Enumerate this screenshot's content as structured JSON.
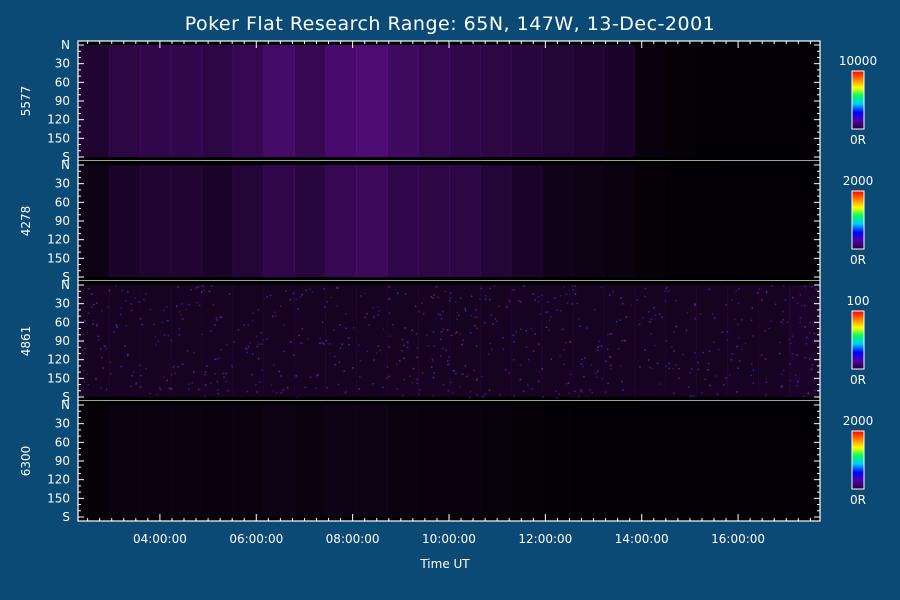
{
  "chart_data": {
    "type": "heatmap",
    "title": "Poker Flat Research Range: 65N, 147W, 13-Dec-2001",
    "xlabel": "Time UT",
    "x_ticks": [
      "04:00:00",
      "06:00:00",
      "08:00:00",
      "10:00:00",
      "12:00:00",
      "14:00:00",
      "16:00:00"
    ],
    "x_tick_hours": [
      4,
      6,
      8,
      10,
      12,
      14,
      16
    ],
    "x_range_hours": [
      2.3,
      17.7
    ],
    "y_ticks": [
      "N",
      "30",
      "60",
      "90",
      "120",
      "150",
      "S"
    ],
    "y_tick_values": [
      0,
      30,
      60,
      90,
      120,
      150,
      180
    ],
    "y_range": [
      0,
      180
    ],
    "panels": [
      {
        "ylabel": "5577",
        "colorbar_max": "10000",
        "colorbar_min": "0R",
        "emission_profile": [
          0.35,
          0.5,
          0.55,
          0.55,
          0.5,
          0.6,
          0.75,
          0.6,
          0.8,
          0.85,
          0.7,
          0.6,
          0.55,
          0.5,
          0.45,
          0.4,
          0.35,
          0.3,
          0.1,
          0.05,
          0.04,
          0.03,
          0.03,
          0.02
        ]
      },
      {
        "ylabel": "4278",
        "colorbar_max": "2000",
        "colorbar_min": "0R",
        "emission_profile": [
          0.15,
          0.3,
          0.35,
          0.35,
          0.3,
          0.4,
          0.55,
          0.45,
          0.6,
          0.65,
          0.55,
          0.5,
          0.5,
          0.4,
          0.3,
          0.2,
          0.15,
          0.12,
          0.05,
          0.03,
          0.03,
          0.02,
          0.02,
          0.02
        ]
      },
      {
        "ylabel": "4861",
        "colorbar_max": "100",
        "colorbar_min": "0R",
        "emission_profile": [
          0.25,
          0.25,
          0.25,
          0.25,
          0.25,
          0.25,
          0.25,
          0.25,
          0.25,
          0.25,
          0.25,
          0.25,
          0.25,
          0.25,
          0.25,
          0.25,
          0.25,
          0.25,
          0.25,
          0.25,
          0.25,
          0.25,
          0.25,
          0.3
        ]
      },
      {
        "ylabel": "6300",
        "colorbar_max": "2000",
        "colorbar_min": "0R",
        "emission_profile": [
          0.05,
          0.12,
          0.12,
          0.12,
          0.1,
          0.12,
          0.15,
          0.12,
          0.15,
          0.15,
          0.12,
          0.1,
          0.1,
          0.08,
          0.05,
          0.04,
          0.03,
          0.03,
          0.02,
          0.02,
          0.02,
          0.02,
          0.02,
          0.02
        ]
      }
    ],
    "colormap": [
      "#200040",
      "#5000a0",
      "#0000ff",
      "#00c8ff",
      "#00ff60",
      "#ffff00",
      "#ff8000",
      "#ff0000"
    ]
  }
}
